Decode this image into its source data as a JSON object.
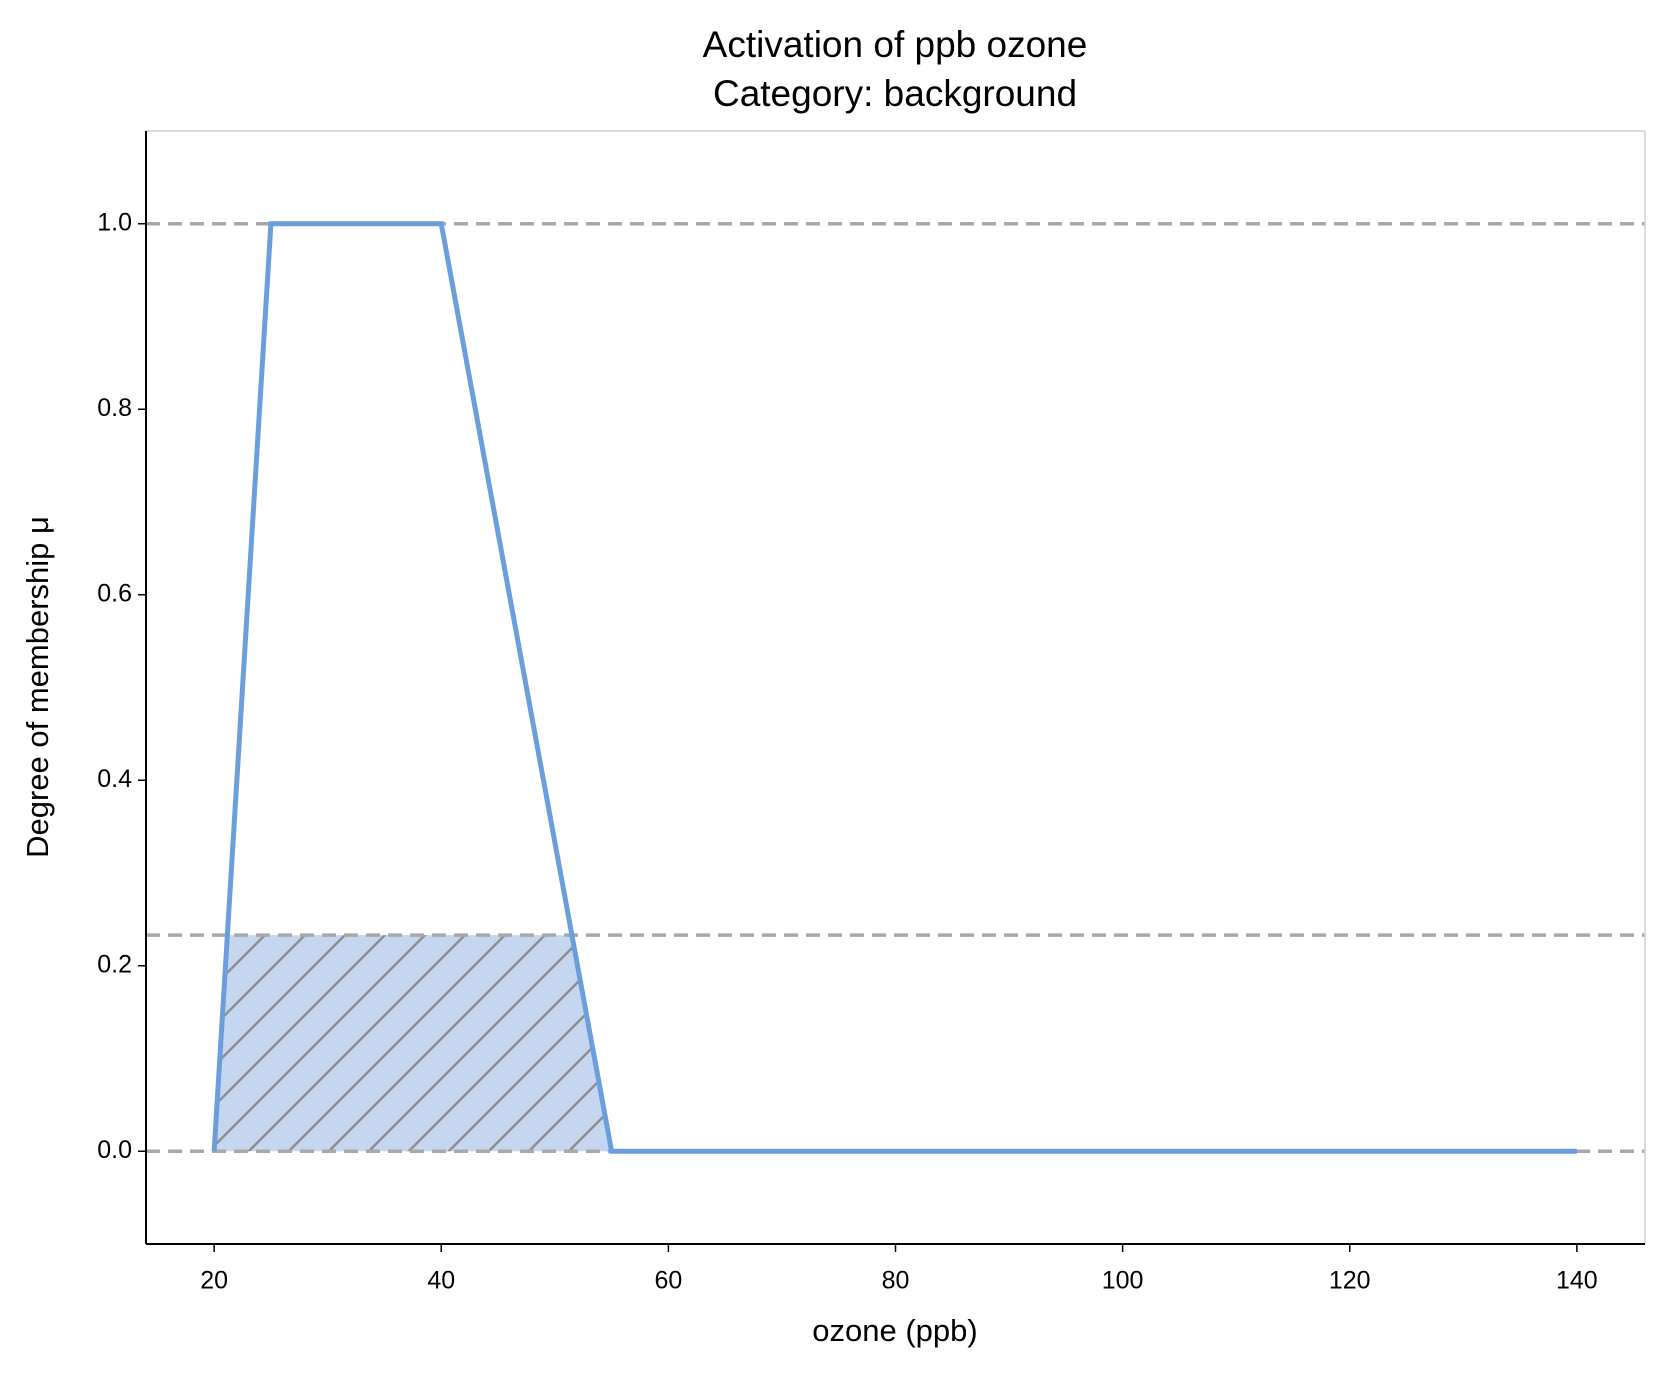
{
  "chart_data": {
    "type": "line",
    "title": "Activation of ppb ozone",
    "subtitle": "Category: background",
    "x_label": "ozone (ppb)",
    "y_label": "Degree of membership μ",
    "x": [
      20,
      25,
      40,
      55,
      140
    ],
    "values": [
      0,
      1,
      1,
      0,
      0
    ],
    "color": "#6a9fdb",
    "activation": 0.233,
    "activation_color": "#c5d7f0",
    "reference_lines": [
      0,
      1
    ],
    "xlim": [
      14,
      146
    ],
    "ylim": [
      -0.1,
      1.1
    ],
    "xticks": [
      20,
      40,
      60,
      80,
      100,
      120,
      140
    ],
    "yticks": [
      {
        "value": 0,
        "label": "0.0"
      },
      0.2,
      0.4,
      0.6,
      0.8,
      {
        "value": 1,
        "label": "1.0"
      }
    ]
  }
}
